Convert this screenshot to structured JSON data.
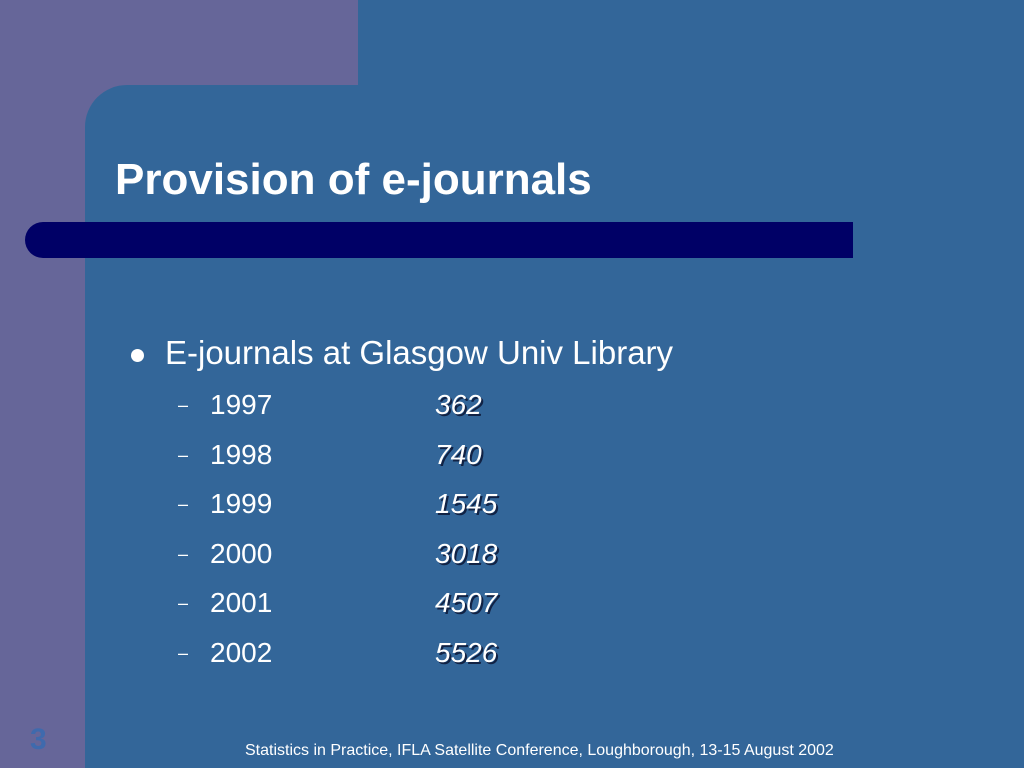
{
  "slide": {
    "title": "Provision of e-journals",
    "bullet": "E-journals at Glasgow Univ Library",
    "items": [
      {
        "year": "1997",
        "count": "362"
      },
      {
        "year": "1998",
        "count": "740"
      },
      {
        "year": "1999",
        "count": "1545"
      },
      {
        "year": "2000",
        "count": "3018"
      },
      {
        "year": "2001",
        "count": "4507"
      },
      {
        "year": "2002",
        "count": "5526"
      }
    ],
    "number": "3",
    "footer": "Statistics in Practice, IFLA Satellite Conference, Loughborough, 13-15 August 2002"
  }
}
